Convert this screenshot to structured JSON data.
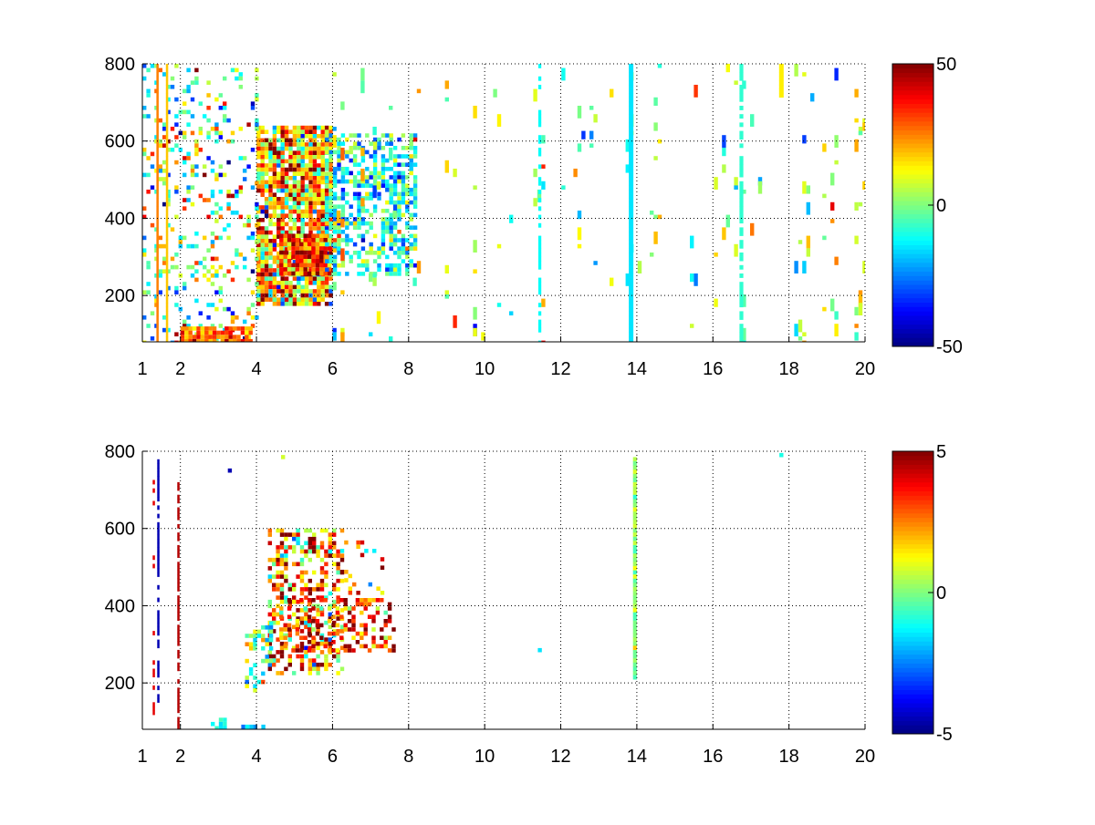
{
  "figure": {
    "background": "#ffffff",
    "colormap": "jet"
  },
  "chart_data": [
    {
      "type": "heatmap",
      "panel": "top",
      "title": "",
      "xlabel": "",
      "ylabel": "",
      "xlim": [
        1,
        20
      ],
      "ylim": [
        80,
        800
      ],
      "x_ticks": [
        1,
        2,
        4,
        6,
        8,
        10,
        12,
        14,
        16,
        18,
        20
      ],
      "x_tick_labels": [
        "1",
        "2",
        "4",
        "6",
        "8",
        "10",
        "12",
        "14",
        "16",
        "18",
        "20"
      ],
      "y_ticks": [
        200,
        400,
        600,
        800
      ],
      "y_tick_labels": [
        "200",
        "400",
        "600",
        "800"
      ],
      "grid": true,
      "grid_style": "dotted",
      "colorbar": {
        "clim": [
          -50,
          50
        ],
        "tick_values": [
          -50,
          0,
          50
        ],
        "tick_labels": [
          "-50",
          "0",
          "50"
        ],
        "placement": "right"
      },
      "features": [
        {
          "kind": "cloud",
          "x": [
            4.0,
            6.0
          ],
          "y": [
            180,
            640
          ],
          "value": 18,
          "spread": 22,
          "density": 0.85
        },
        {
          "kind": "cloud",
          "x": [
            4.6,
            5.9
          ],
          "y": [
            260,
            360
          ],
          "value": 32,
          "spread": 14,
          "density": 0.9
        },
        {
          "kind": "cloud",
          "x": [
            5.8,
            8.2
          ],
          "y": [
            260,
            620
          ],
          "value": -10,
          "spread": 14,
          "density": 0.55
        },
        {
          "kind": "cloud",
          "x": [
            1.0,
            4.0
          ],
          "y": [
            80,
            800
          ],
          "value": 0,
          "spread": 22,
          "density": 0.18
        },
        {
          "kind": "cloud",
          "x": [
            2.0,
            3.8
          ],
          "y": [
            80,
            120
          ],
          "value": 28,
          "spread": 10,
          "density": 0.85
        },
        {
          "kind": "sparse",
          "x": [
            6.0,
            20.0
          ],
          "y": [
            80,
            800
          ],
          "value": 2,
          "spread": 15,
          "density": 0.045
        },
        {
          "kind": "column",
          "x": 13.85,
          "width": 0.12,
          "y": [
            80,
            800
          ],
          "value": -15
        },
        {
          "kind": "column",
          "x": 1.4,
          "width": 0.05,
          "y": [
            80,
            800
          ],
          "value": 25
        },
        {
          "kind": "column",
          "x": 1.65,
          "width": 0.05,
          "y": [
            80,
            800
          ],
          "value": 18
        },
        {
          "kind": "column",
          "x": 16.75,
          "width": 0.1,
          "y": [
            80,
            800
          ],
          "value": -8,
          "density": 0.6
        },
        {
          "kind": "column",
          "x": 17.8,
          "width": 0.12,
          "y": [
            720,
            800
          ],
          "value": 14
        },
        {
          "kind": "column",
          "x": 11.45,
          "width": 0.08,
          "y": [
            80,
            800
          ],
          "value": -12,
          "density": 0.55
        }
      ]
    },
    {
      "type": "heatmap",
      "panel": "bottom",
      "title": "",
      "xlabel": "",
      "ylabel": "",
      "xlim": [
        1,
        20
      ],
      "ylim": [
        80,
        800
      ],
      "x_ticks": [
        1,
        2,
        4,
        6,
        8,
        10,
        12,
        14,
        16,
        18,
        20
      ],
      "x_tick_labels": [
        "1",
        "2",
        "4",
        "6",
        "8",
        "10",
        "12",
        "14",
        "16",
        "18",
        "20"
      ],
      "y_ticks": [
        200,
        400,
        600,
        800
      ],
      "y_tick_labels": [
        "200",
        "400",
        "600",
        "800"
      ],
      "grid": true,
      "grid_style": "dotted",
      "colorbar": {
        "clim": [
          -5,
          5
        ],
        "tick_values": [
          -5,
          0,
          5
        ],
        "tick_labels": [
          "-5",
          "0",
          "5"
        ],
        "placement": "right"
      },
      "features": [
        {
          "kind": "cloud",
          "x": [
            4.3,
            6.2
          ],
          "y": [
            220,
            600
          ],
          "value": 2.5,
          "spread": 2.2,
          "density": 0.45
        },
        {
          "kind": "cloud",
          "x": [
            4.6,
            7.6
          ],
          "y": [
            280,
            420
          ],
          "value": 3.2,
          "spread": 1.6,
          "density": 0.4
        },
        {
          "kind": "cloud",
          "x": [
            3.7,
            4.4
          ],
          "y": [
            180,
            360
          ],
          "value": -0.5,
          "spread": 1.6,
          "density": 0.3
        },
        {
          "kind": "cloud",
          "x": [
            6.2,
            7.3
          ],
          "y": [
            430,
            580
          ],
          "value": 2.5,
          "spread": 2.0,
          "density": 0.18
        },
        {
          "kind": "cloud",
          "x": [
            2.8,
            3.2
          ],
          "y": [
            85,
            110
          ],
          "value": -1.0,
          "spread": 0.5,
          "density": 0.7
        },
        {
          "kind": "cloud",
          "x": [
            3.6,
            4.2
          ],
          "y": [
            80,
            92
          ],
          "value": -2.0,
          "spread": 1.0,
          "density": 0.7
        },
        {
          "kind": "column",
          "x": 13.95,
          "width": 0.1,
          "y": [
            215,
            785
          ],
          "value": 0.2,
          "spread": 1.0
        },
        {
          "kind": "column",
          "x": 1.42,
          "width": 0.05,
          "y": [
            150,
            790
          ],
          "value": -4.5,
          "density": 0.8
        },
        {
          "kind": "column",
          "x": 1.95,
          "width": 0.04,
          "y": [
            80,
            720
          ],
          "value": 4.5,
          "density": 0.7
        },
        {
          "kind": "column",
          "x": 1.3,
          "width": 0.05,
          "y": [
            80,
            780
          ],
          "value": 4.0,
          "density": 0.25
        },
        {
          "kind": "point",
          "x": 11.45,
          "y": 285,
          "value": -1.5
        },
        {
          "kind": "point",
          "x": 17.8,
          "y": 790,
          "value": -1.0
        },
        {
          "kind": "point",
          "x": 3.3,
          "y": 750,
          "value": -4.5
        },
        {
          "kind": "point",
          "x": 4.7,
          "y": 785,
          "value": 0.8
        }
      ]
    }
  ]
}
